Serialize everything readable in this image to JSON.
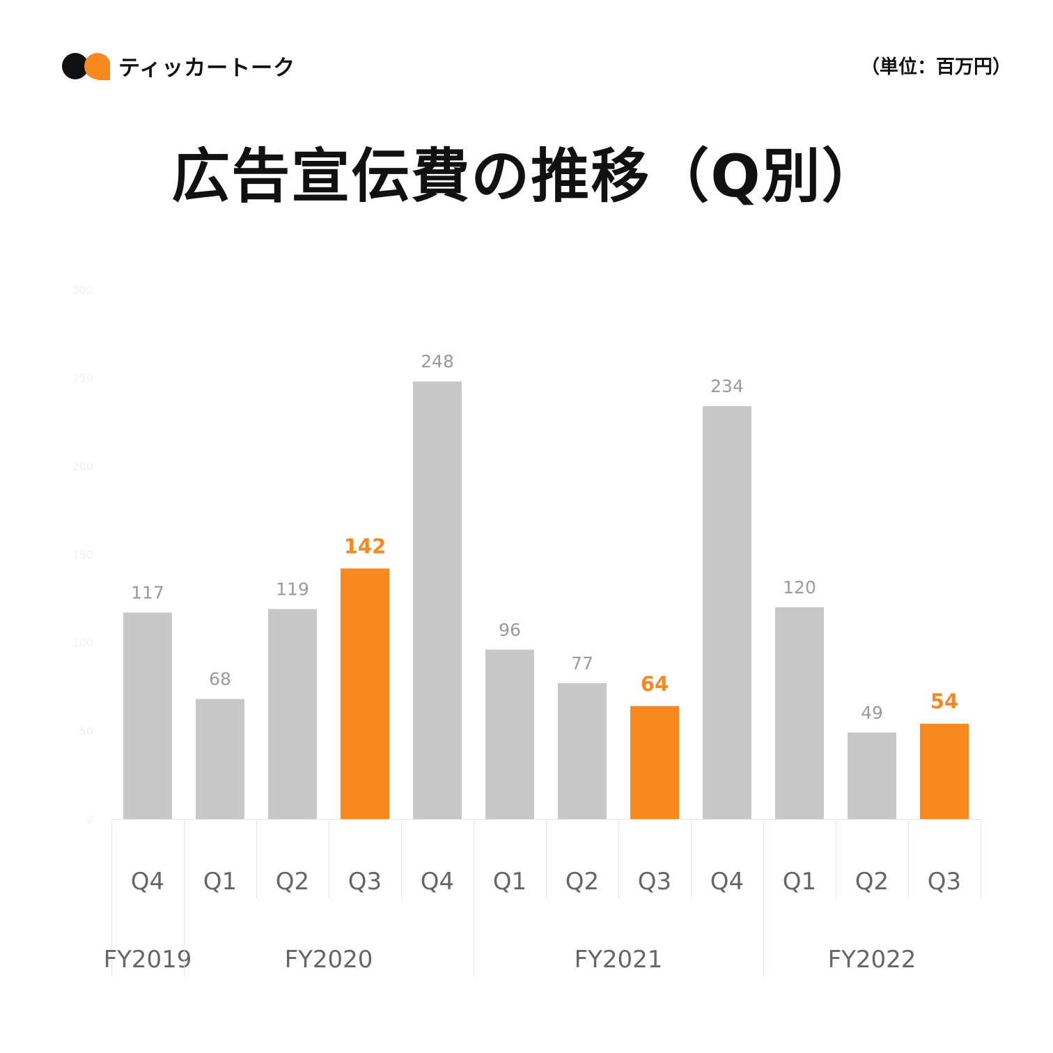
{
  "header": {
    "brand": "ティッカートーク",
    "unit_label": "（単位：百万円）",
    "logo_colors": {
      "dark": "#111111",
      "accent": "#F7891F"
    }
  },
  "chart_data": {
    "type": "bar",
    "title": "広告宣伝費の推移（Q別）",
    "xlabel": "",
    "ylabel": "",
    "ylim": [
      0,
      300
    ],
    "yticks": [
      0,
      50,
      100,
      150,
      200,
      250,
      300
    ],
    "grid": false,
    "categories": [
      "Q4",
      "Q1",
      "Q2",
      "Q3",
      "Q4",
      "Q1",
      "Q2",
      "Q3",
      "Q4",
      "Q1",
      "Q2",
      "Q3"
    ],
    "fiscal_years": [
      {
        "label": "FY2019",
        "quarters": 1
      },
      {
        "label": "FY2020",
        "quarters": 4
      },
      {
        "label": "FY2021",
        "quarters": 4
      },
      {
        "label": "FY2022",
        "quarters": 3
      }
    ],
    "values": [
      117,
      68,
      119,
      142,
      248,
      96,
      77,
      64,
      234,
      120,
      49,
      54
    ],
    "highlight": [
      false,
      false,
      false,
      true,
      false,
      false,
      false,
      true,
      false,
      false,
      false,
      true
    ],
    "colors": {
      "default": "#C8C8C8",
      "highlight": "#F7891F",
      "label_default": "#9A9A9A",
      "label_highlight": "#F7891F"
    }
  }
}
